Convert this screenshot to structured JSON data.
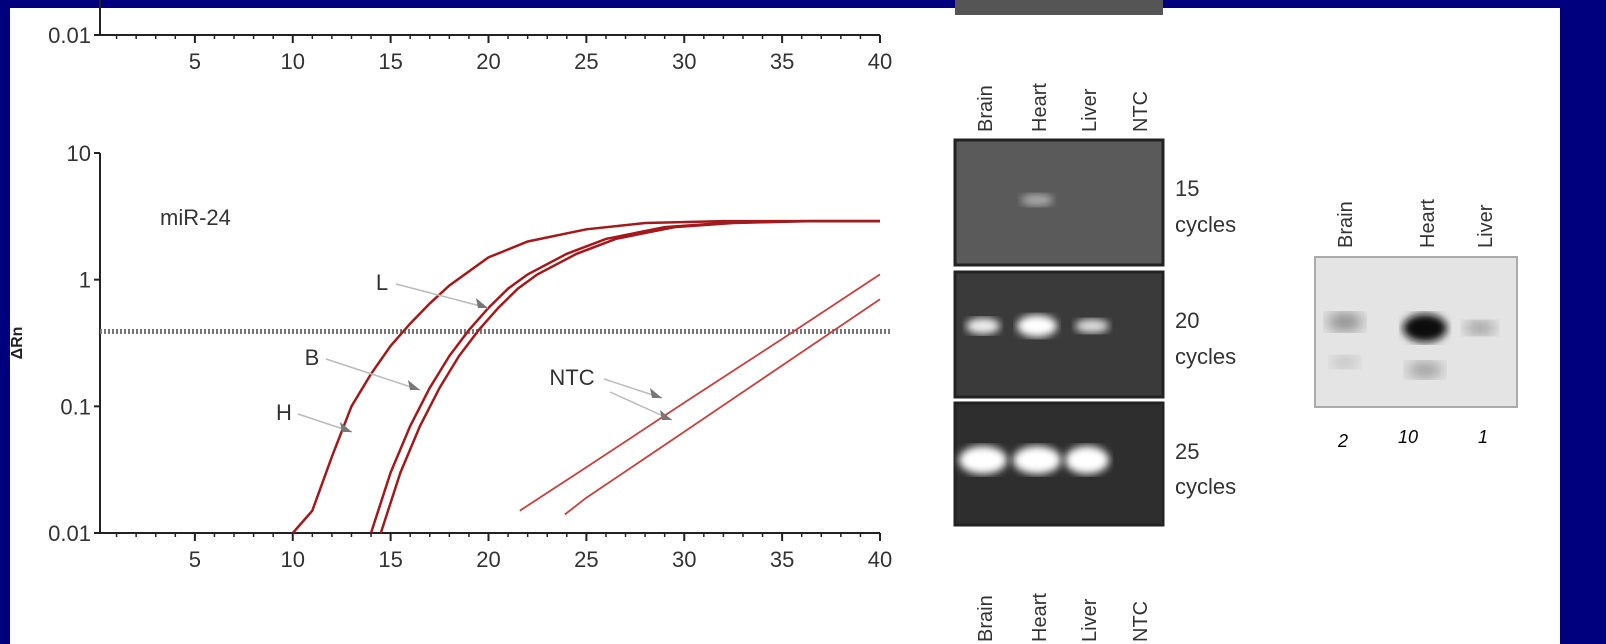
{
  "chart_data": [
    {
      "type": "line",
      "xlim": [
        0,
        40
      ],
      "xticks": [
        5,
        10,
        15,
        20,
        25,
        30,
        35,
        40
      ],
      "ylim": [
        0.01,
        10
      ],
      "yticks": [
        0.01
      ],
      "log_y": true
    },
    {
      "type": "line",
      "ylabel": "ΔRn",
      "annotation": "miR-24",
      "labels": [
        "L",
        "B",
        "H",
        "NTC"
      ],
      "xlim": [
        0,
        40
      ],
      "xticks": [
        5,
        10,
        15,
        20,
        25,
        30,
        35,
        40
      ],
      "ylim": [
        0.01,
        10
      ],
      "yticks": [
        0.01,
        0.1,
        1,
        10
      ],
      "log_y": true,
      "threshold": 0.39,
      "series": [
        {
          "color": "#a3191c",
          "x": [
            10,
            11,
            12,
            13,
            14,
            15,
            16,
            17,
            18,
            20,
            22,
            25,
            28,
            32,
            36,
            40
          ],
          "values": [
            0.01,
            0.015,
            0.04,
            0.1,
            0.18,
            0.3,
            0.45,
            0.65,
            0.9,
            1.5,
            2.0,
            2.5,
            2.8,
            2.9,
            2.9,
            2.9
          ]
        },
        {
          "color": "#a3191c",
          "x": [
            14,
            15,
            16,
            17,
            18,
            19,
            20,
            21,
            22,
            24,
            26,
            29,
            32,
            36,
            40
          ],
          "values": [
            0.01,
            0.03,
            0.07,
            0.14,
            0.25,
            0.4,
            0.6,
            0.85,
            1.1,
            1.6,
            2.1,
            2.6,
            2.8,
            2.9,
            2.9
          ]
        },
        {
          "color": "#a3191c",
          "x": [
            14.5,
            15.5,
            16.5,
            17.5,
            18.5,
            19.5,
            20.5,
            21.5,
            22.5,
            24.5,
            26.5,
            29.5,
            32.5,
            36.5,
            40
          ],
          "values": [
            0.01,
            0.03,
            0.07,
            0.14,
            0.25,
            0.4,
            0.6,
            0.85,
            1.1,
            1.6,
            2.1,
            2.6,
            2.8,
            2.9,
            2.9
          ]
        },
        {
          "color": "#c8403f",
          "x": [
            21.6,
            25,
            30,
            35,
            40
          ],
          "values": [
            0.015,
            0.033,
            0.107,
            0.34,
            1.1
          ]
        },
        {
          "color": "#c8403f",
          "x": [
            23.9,
            25,
            30,
            35,
            40
          ],
          "values": [
            0.014,
            0.019,
            0.063,
            0.21,
            0.7
          ]
        }
      ]
    }
  ],
  "gel": {
    "lanes": [
      "Brain",
      "Heart",
      "Liver",
      "NTC"
    ],
    "rows": [
      [
        "15",
        "cycles"
      ],
      [
        "20",
        "cycles"
      ],
      [
        "25",
        "cycles"
      ]
    ],
    "bottom_lanes": [
      "Brain",
      "Heart",
      "Liver",
      "NTC"
    ]
  },
  "northern": {
    "lanes": [
      "Brain",
      "Heart",
      "Liver"
    ],
    "values": [
      2,
      10,
      1
    ]
  }
}
